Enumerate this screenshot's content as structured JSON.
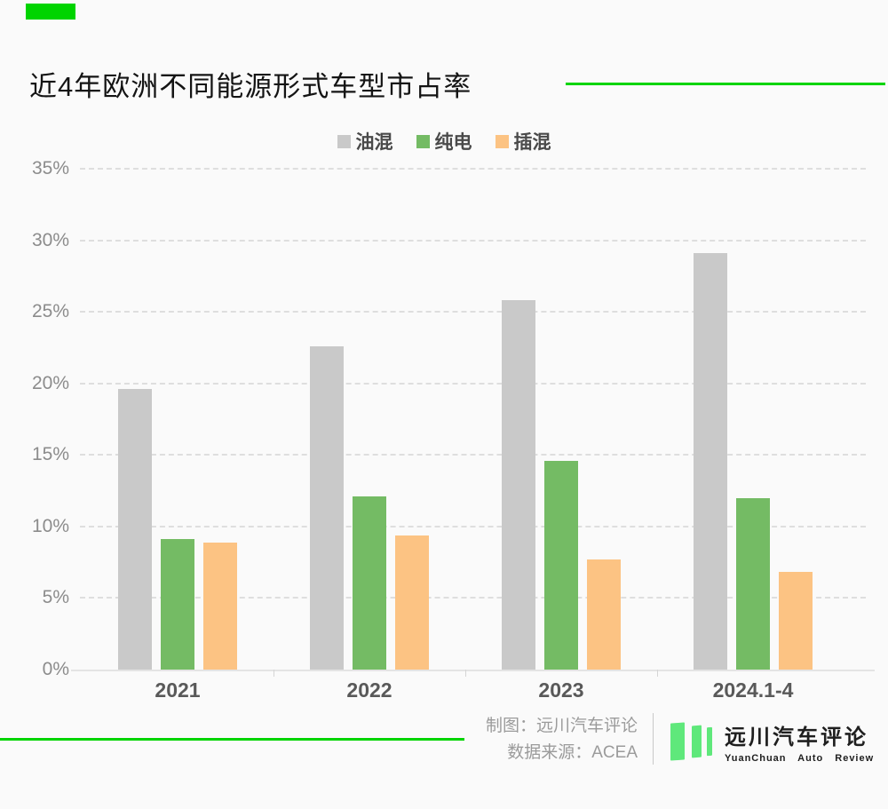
{
  "header": {
    "title": "近4年欧洲不同能源形式车型市占率"
  },
  "chart_data": {
    "type": "bar",
    "title": "近4年欧洲不同能源形式车型市占率",
    "categories": [
      "2021",
      "2022",
      "2023",
      "2024.1-4"
    ],
    "series": [
      {
        "name": "油混",
        "color": "#c9c9c9",
        "values": [
          19.6,
          22.6,
          25.8,
          29.1
        ]
      },
      {
        "name": "纯电",
        "color": "#74bb64",
        "values": [
          9.1,
          12.1,
          14.6,
          12.0
        ]
      },
      {
        "name": "插混",
        "color": "#fcc383",
        "values": [
          8.9,
          9.4,
          7.7,
          6.8
        ]
      }
    ],
    "xlabel": "",
    "ylabel": "",
    "ylim": [
      0,
      35
    ],
    "y_tick_step": 5,
    "y_tick_labels": [
      "0%",
      "5%",
      "10%",
      "15%",
      "20%",
      "25%",
      "30%",
      "35%"
    ],
    "grid": "horizontal-dashed",
    "legend_position": "top-center"
  },
  "footer": {
    "credit_line1": "制图：远川汽车评论",
    "credit_line2": "数据来源：ACEA",
    "logo": {
      "icon": "three-green-bars-icon",
      "name": "远川汽车评论",
      "subtitle": "YuanChuan  Auto  Review",
      "color": "#5fe87b"
    }
  },
  "accent_color": "#00d400"
}
